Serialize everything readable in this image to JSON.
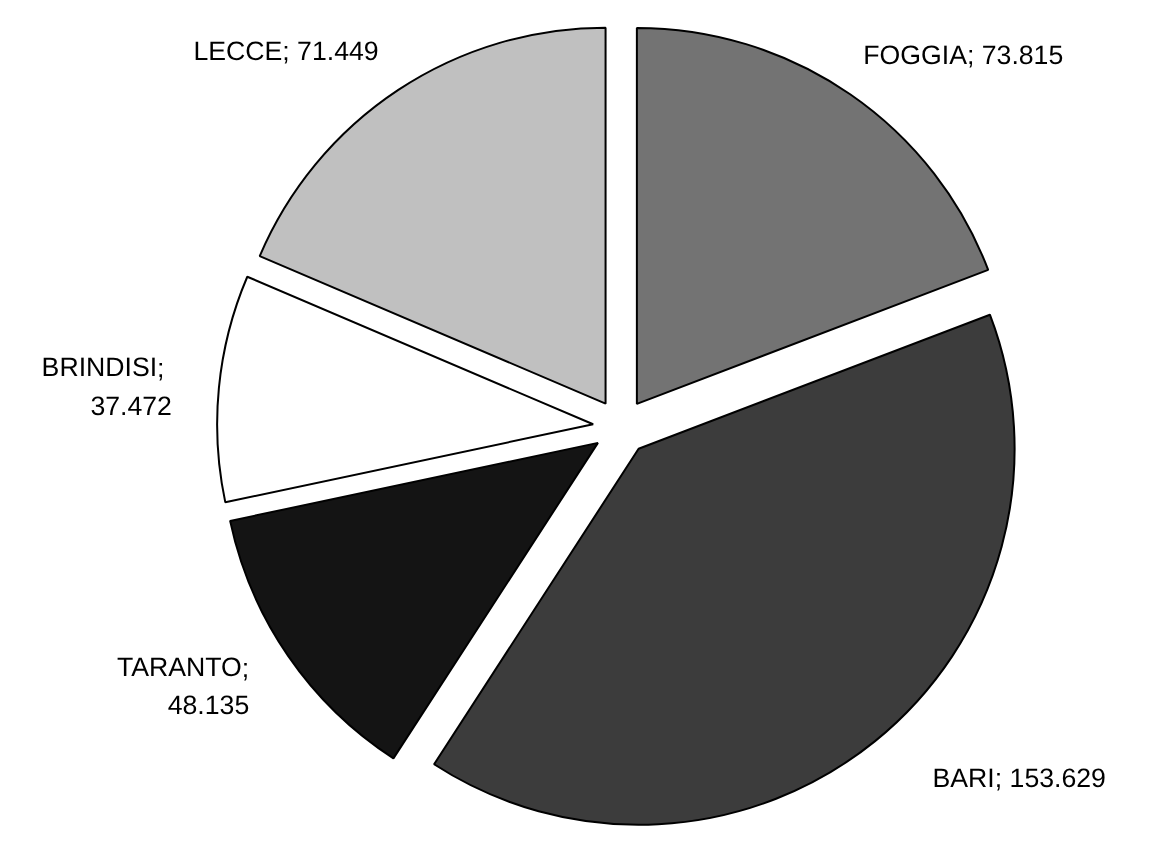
{
  "chart_data": {
    "type": "pie",
    "categories": [
      "FOGGIA",
      "BARI",
      "TARANTO",
      "BRINDISI",
      "LECCE"
    ],
    "values": [
      73.815,
      153.629,
      48.135,
      37.472,
      71.449
    ],
    "colors": [
      "#737373",
      "#3c3c3c",
      "#141414",
      "#ffffff",
      "#c0c0c0"
    ],
    "value_labels": [
      "; 73.815",
      "; 153.629",
      ";\n48.135",
      " ;\n37.472",
      "; 71.449"
    ]
  }
}
